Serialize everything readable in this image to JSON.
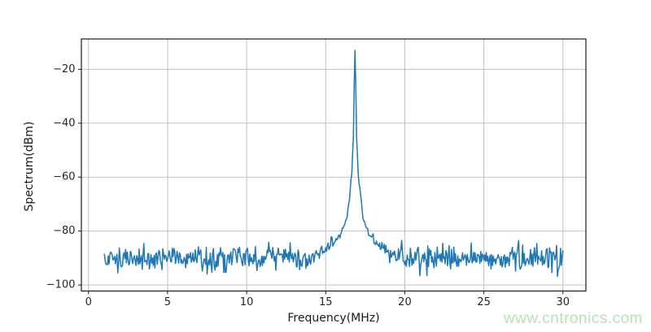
{
  "chart_data": {
    "type": "line",
    "title": "",
    "xlabel": "Frequency(MHz)",
    "ylabel": "Spectrum(dBm)",
    "xlim": [
      -0.45,
      31.45
    ],
    "ylim": [
      -102.25,
      -8.75
    ],
    "xticks": [
      0,
      5,
      10,
      15,
      20,
      25,
      30
    ],
    "yticks": [
      -100,
      -80,
      -60,
      -40,
      -20
    ],
    "grid": true,
    "legend": "none",
    "line_color": "#1f77b4",
    "grid_color": "#c0c0c0",
    "spine_color": "#1a1a1a",
    "tick_label_color": "#262626",
    "series": [
      {
        "name": "spectrum",
        "x_start": 1.0,
        "x_end": 30.0,
        "x_step": 0.05,
        "noise_floor_dbm": -90,
        "noise_sigma_db": 2.3,
        "noise_min_dbm": -98,
        "noise_max_dbm": -83.5,
        "peak_freq_mhz": 16.85,
        "peak_dbm": -13,
        "skirt_profile": [
          [
            0,
            -13
          ],
          [
            0.05,
            -26
          ],
          [
            0.1,
            -45
          ],
          [
            0.2,
            -58
          ],
          [
            0.35,
            -68
          ],
          [
            0.55,
            -76
          ],
          [
            0.9,
            -82
          ],
          [
            1.4,
            -86
          ],
          [
            2.2,
            -93
          ],
          [
            3.0,
            -104
          ]
        ],
        "seed": 1337
      }
    ]
  },
  "watermark": {
    "text": "www.cntronics.com",
    "color": "#b5e3b5"
  }
}
